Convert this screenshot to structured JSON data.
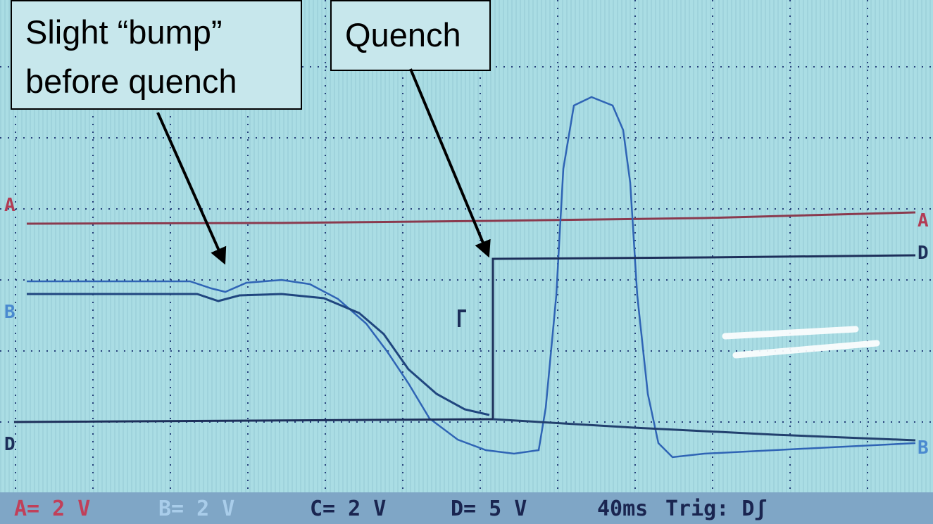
{
  "callouts": [
    {
      "lines": [
        "Slight “bump”",
        "before quench"
      ]
    },
    {
      "lines": [
        "Quench"
      ]
    }
  ],
  "channel_markers": {
    "left": [
      "A",
      "B",
      "D"
    ],
    "right": [
      "A",
      "D",
      "B"
    ]
  },
  "status_bar": {
    "channels": [
      "A= 2 V",
      "B= 2 V",
      "C= 2 V",
      "D= 5 V"
    ],
    "timebase": "40ms",
    "trigger": "Trig: Dʃ"
  }
}
